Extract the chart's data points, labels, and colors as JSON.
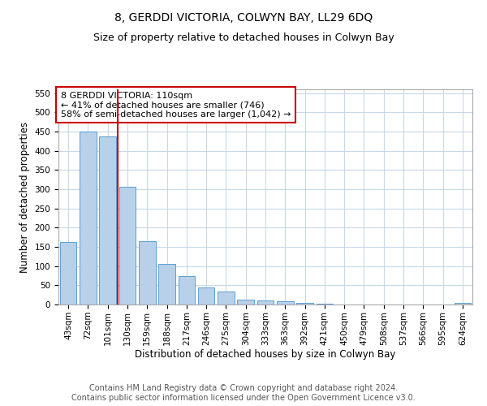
{
  "title": "8, GERDDI VICTORIA, COLWYN BAY, LL29 6DQ",
  "subtitle": "Size of property relative to detached houses in Colwyn Bay",
  "xlabel": "Distribution of detached houses by size in Colwyn Bay",
  "ylabel": "Number of detached properties",
  "categories": [
    "43sqm",
    "72sqm",
    "101sqm",
    "130sqm",
    "159sqm",
    "188sqm",
    "217sqm",
    "246sqm",
    "275sqm",
    "304sqm",
    "333sqm",
    "363sqm",
    "392sqm",
    "421sqm",
    "450sqm",
    "479sqm",
    "508sqm",
    "537sqm",
    "566sqm",
    "595sqm",
    "624sqm"
  ],
  "values": [
    163,
    450,
    437,
    307,
    165,
    106,
    73,
    45,
    34,
    12,
    11,
    9,
    4,
    2,
    1,
    1,
    1,
    0,
    0,
    0,
    5
  ],
  "bar_color": "#b8d0e8",
  "bar_edge_color": "#5a9fd4",
  "vline_x_index": 2,
  "vline_color": "#cc0000",
  "annotation_text": "8 GERDDI VICTORIA: 110sqm\n← 41% of detached houses are smaller (746)\n58% of semi-detached houses are larger (1,042) →",
  "annotation_box_color": "#ffffff",
  "annotation_box_edge_color": "#cc0000",
  "ylim": [
    0,
    560
  ],
  "yticks": [
    0,
    50,
    100,
    150,
    200,
    250,
    300,
    350,
    400,
    450,
    500,
    550
  ],
  "footer": "Contains HM Land Registry data © Crown copyright and database right 2024.\nContains public sector information licensed under the Open Government Licence v3.0.",
  "background_color": "#ffffff",
  "grid_color": "#c8d8e8",
  "title_fontsize": 10,
  "subtitle_fontsize": 9,
  "axis_label_fontsize": 8.5,
  "tick_fontsize": 7.5,
  "annotation_fontsize": 8,
  "footer_fontsize": 7
}
